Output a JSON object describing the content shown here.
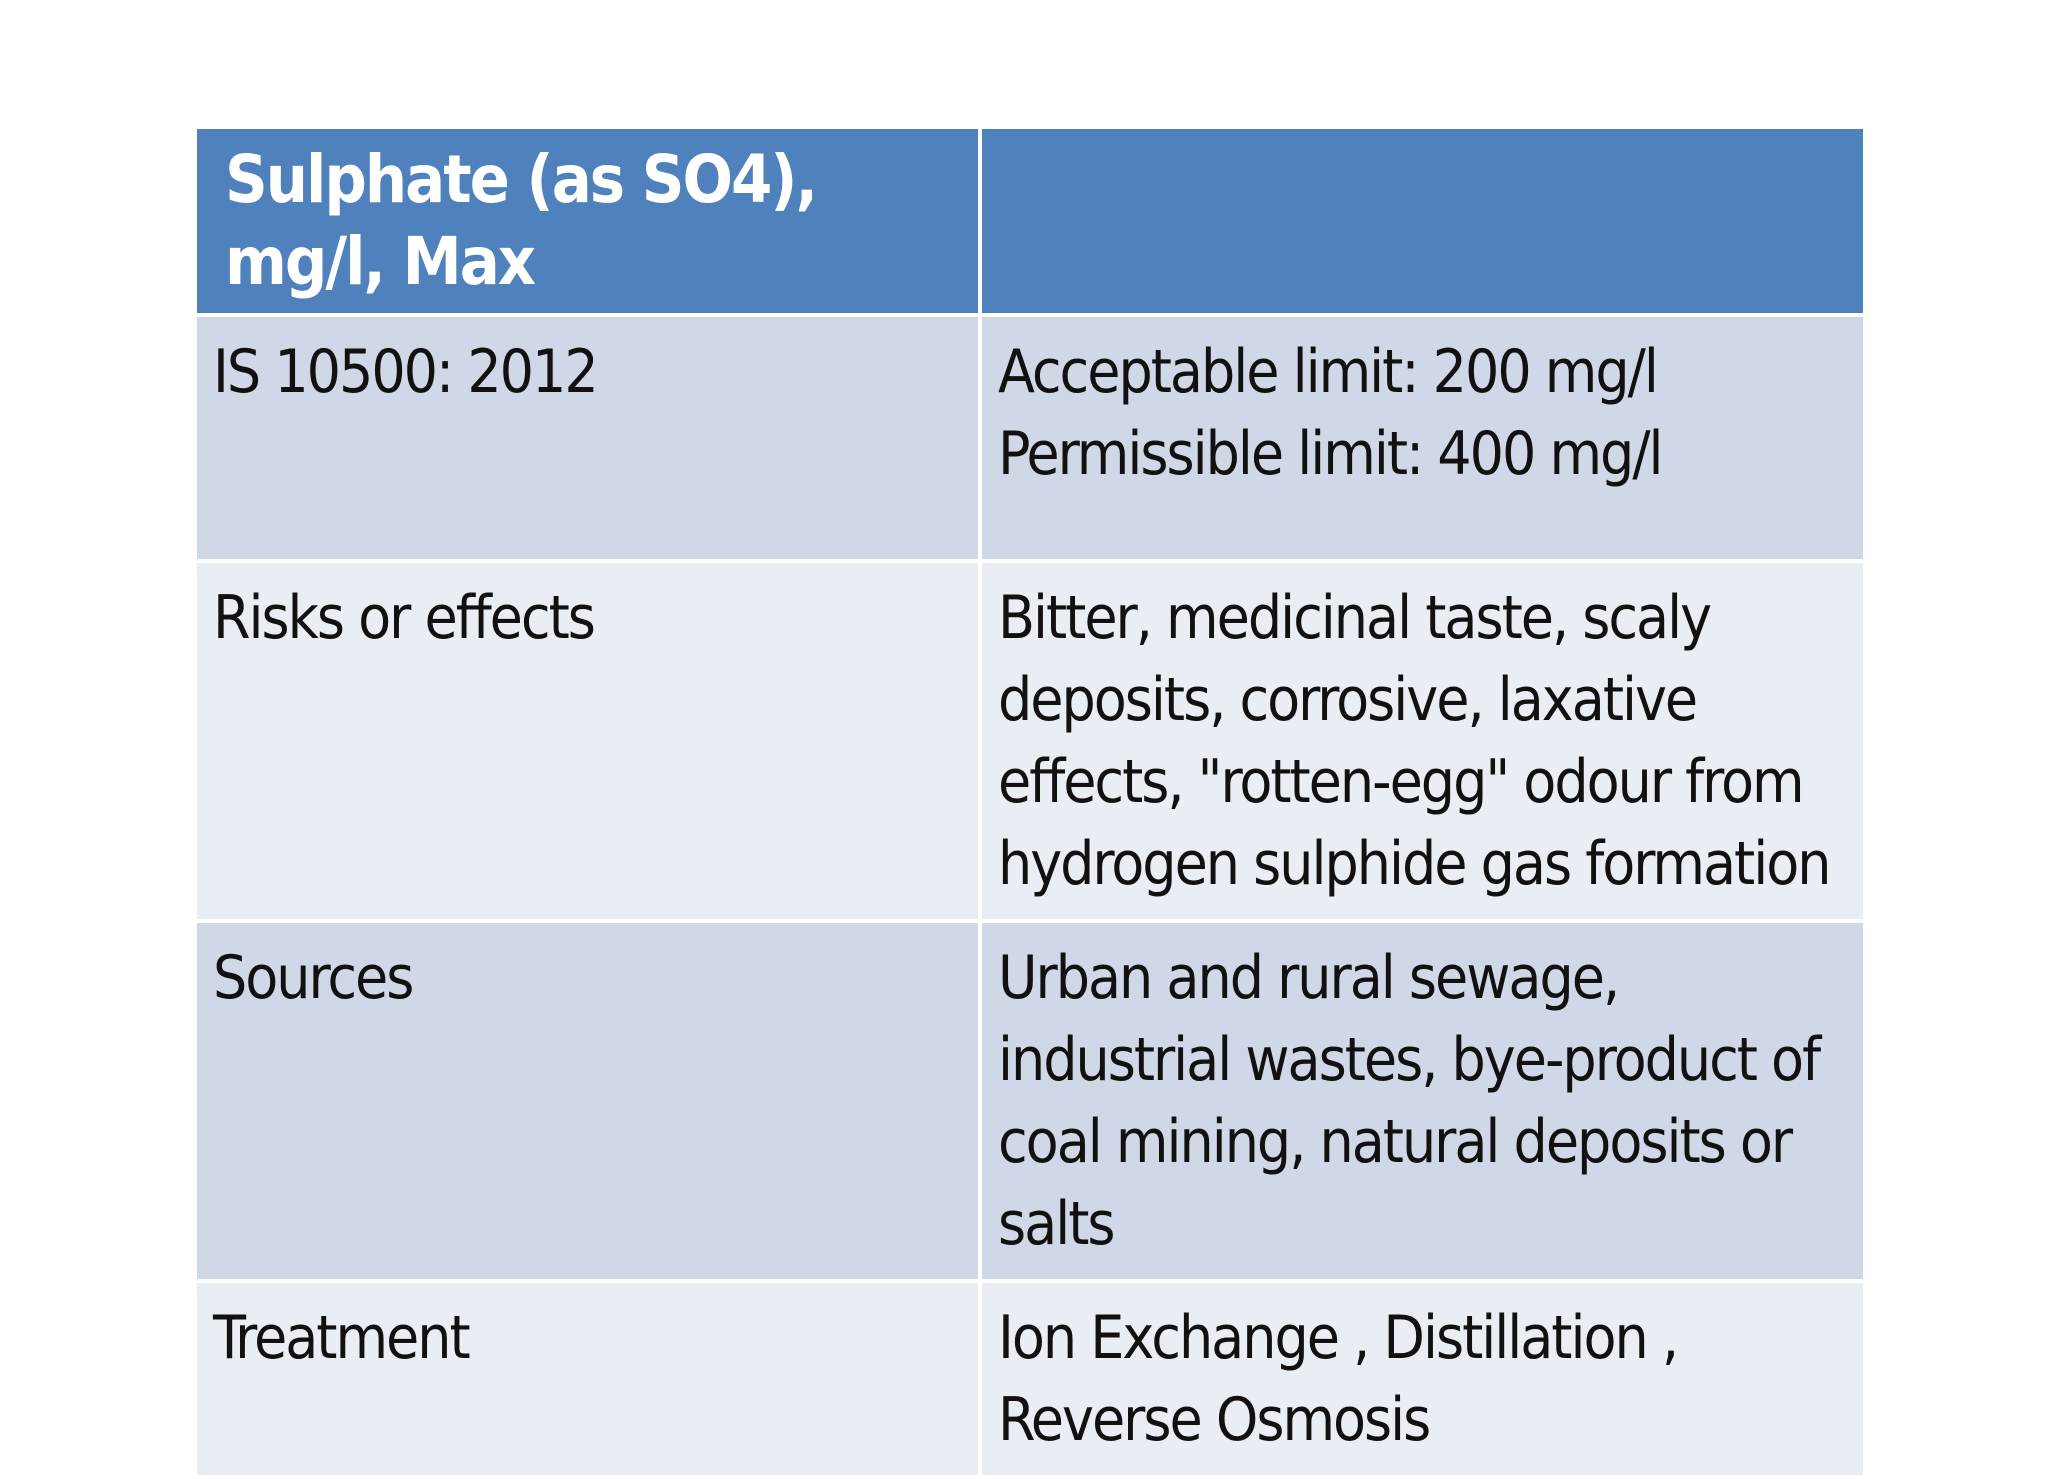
{
  "table": {
    "header": {
      "col1": "Sulphate (as SO4), mg/l, Max",
      "col2": ""
    },
    "rows": [
      {
        "label": "IS 10500: 2012",
        "value_lines": [
          "Acceptable limit: 200 mg/l",
          "Permissible limit: 400 mg/l"
        ]
      },
      {
        "label": "Risks or effects",
        "value": "Bitter, medicinal taste, scaly deposits, corrosive, laxative effects, \"rotten-egg\" odour from hydrogen sulphide gas formation"
      },
      {
        "label": "Sources",
        "value": "Urban and rural sewage, industrial wastes, bye-product of coal mining, natural deposits or salts"
      },
      {
        "label": "Treatment",
        "value": "Ion Exchange , Distillation , Reverse Osmosis"
      }
    ]
  },
  "colors": {
    "header_bg": "#4f81bd",
    "row_dark_bg": "#d0d8e8",
    "row_light_bg": "#e9edf4",
    "header_text": "#ffffff",
    "body_text": "#111111"
  }
}
